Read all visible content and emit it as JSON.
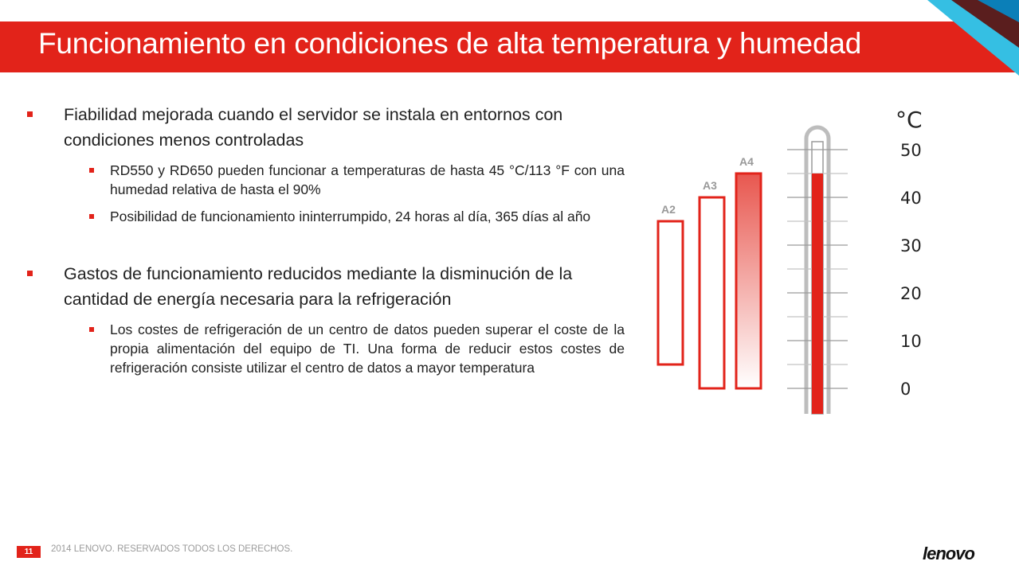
{
  "slide": {
    "title": "Funcionamiento en condiciones de alta temperatura y humedad",
    "page_number": "11",
    "footer": "2014 LENOVO. RESERVADOS TODOS LOS DERECHOS.",
    "logo": "lenovo",
    "accent_color": "#e2231a"
  },
  "bullets": [
    {
      "text": "Fiabilidad mejorada cuando el servidor se instala en entornos con condiciones menos controladas",
      "sub": [
        "RD550 y RD650 pueden funcionar a temperaturas de hasta 45 °C/113 °F con una humedad relativa de hasta el 90%",
        "Posibilidad de funcionamiento ininterrumpido, 24 horas al día, 365 días al año"
      ]
    },
    {
      "text": "Gastos de funcionamiento reducidos mediante la disminución de la cantidad de energía necesaria para la refrigeración",
      "sub": [
        "Los costes de refrigeración de un centro de datos pueden superar el coste de la propia alimentación del equipo de TI. Una forma de reducir estos costes de refrigeración consiste utilizar el centro de datos a mayor temperatura"
      ]
    }
  ],
  "chart_data": {
    "type": "thermometer",
    "unit": "°C",
    "scale_ticks": [
      "50",
      "40",
      "30",
      "20",
      "10",
      "0"
    ],
    "ylim": [
      0,
      50
    ],
    "mercury_level": 45,
    "classes": [
      {
        "label": "A2",
        "min": 5,
        "max": 35
      },
      {
        "label": "A3",
        "min": 0,
        "max": 40
      },
      {
        "label": "A4",
        "min": 0,
        "max": 45
      }
    ]
  }
}
